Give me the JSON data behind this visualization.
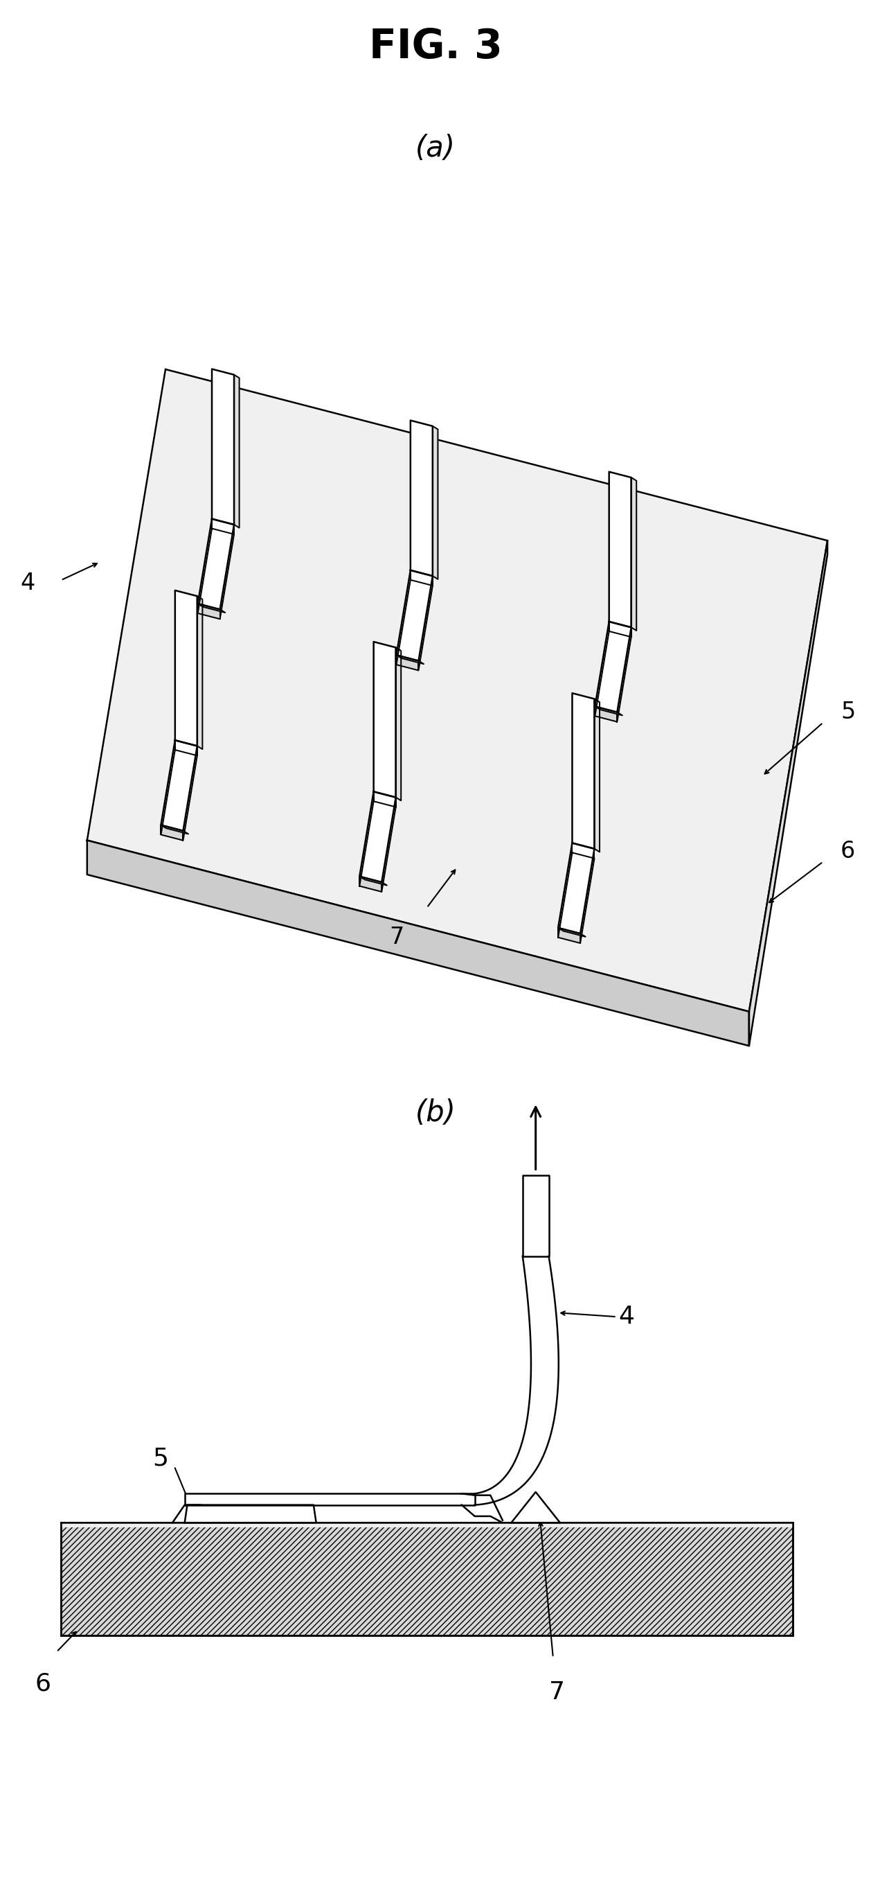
{
  "title": "FIG. 3",
  "subtitle_a": "(a)",
  "subtitle_b": "(b)",
  "bg_color": "#ffffff",
  "line_color": "#000000",
  "label_4": "4",
  "label_5": "5",
  "label_6": "6",
  "label_7": "7",
  "fig_width": 12.58,
  "fig_height": 27.1
}
